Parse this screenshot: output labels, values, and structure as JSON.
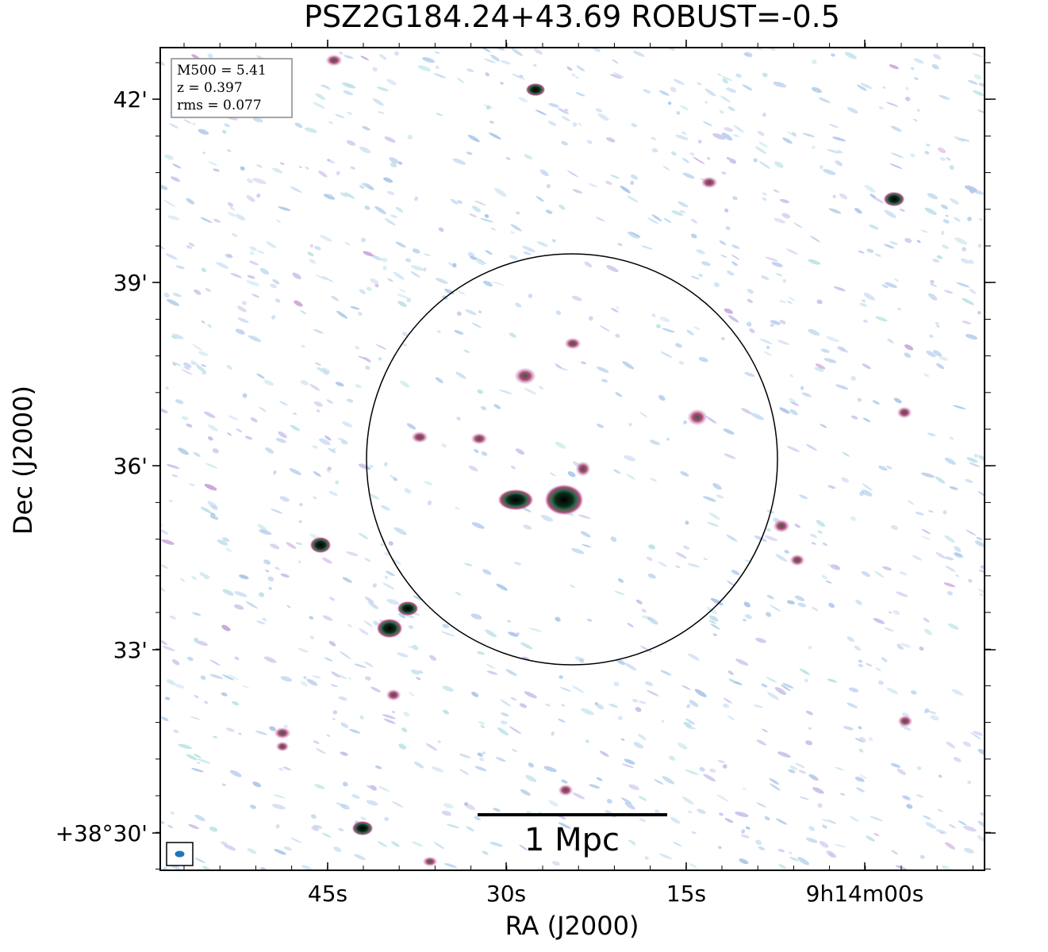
{
  "title": "PSZ2G184.24+43.69 ROBUST=-0.5",
  "x_axis": {
    "label": "RA (J2000)",
    "ticks": [
      "45s",
      "30s",
      "15s",
      "9h14m00s"
    ]
  },
  "y_axis": {
    "label": "Dec (J2000)",
    "ticks": [
      "42'",
      "39'",
      "36'",
      "33'",
      "+38°30'"
    ]
  },
  "info_box": [
    "M500 = 5.41",
    "z = 0.397",
    "rms = 0.077"
  ],
  "scale_bar": "1 Mpc"
}
